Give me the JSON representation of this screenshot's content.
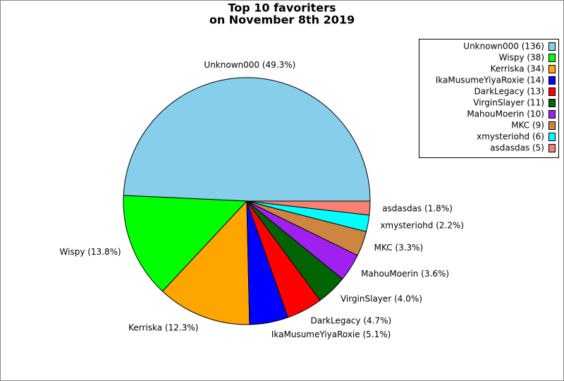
{
  "chart_data": {
    "type": "pie",
    "title": [
      "Top 10 favoriters",
      "on November 8th 2019"
    ],
    "categories": [
      "Unknown000",
      "Wispy",
      "Kerriska",
      "IkaMusumeYiyaRoxie",
      "DarkLegacy",
      "VirginSlayer",
      "MahouMoerin",
      "MKC",
      "xmysteriohd",
      "asdasdas"
    ],
    "values": [
      136,
      38,
      34,
      14,
      13,
      11,
      10,
      9,
      6,
      5
    ],
    "value_labels": [
      "Unknown000 (49.3%)",
      "Wispy (13.8%)",
      "Kerriska (12.3%)",
      "IkaMusumeYiyaRoxie (5.1%)",
      "DarkLegacy (4.7%)",
      "VirginSlayer (4.0%)",
      "MahouMoerin (3.6%)",
      "MKC (3.3%)",
      "xmysteriohd (2.2%)",
      "asdasdas (1.8%)"
    ],
    "legend_labels": [
      "Unknown000 (136)",
      "Wispy (38)",
      "Kerriska (34)",
      "IkaMusumeYiyaRoxie (14)",
      "DarkLegacy (13)",
      "VirginSlayer (11)",
      "MahouMoerin (10)",
      "MKC (9)",
      "xmysteriohd (6)",
      "asdasdas (5)"
    ],
    "colors": [
      "#87ceeb",
      "#00ff00",
      "#ffa500",
      "#0000ff",
      "#ff0000",
      "#006400",
      "#a020f0",
      "#cd853f",
      "#00ffff",
      "#fa8072"
    ],
    "legend": "upper right"
  }
}
